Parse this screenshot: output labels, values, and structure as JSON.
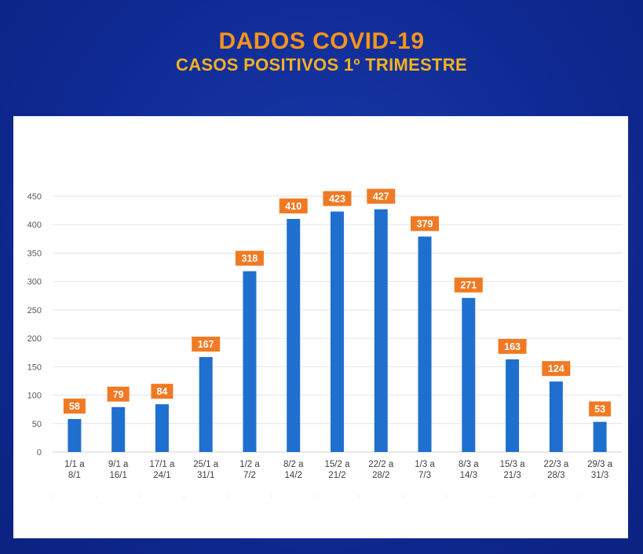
{
  "header": {
    "title": "DADOS COVID-19",
    "subtitle": "CASOS POSITIVOS 1º TRIMESTRE"
  },
  "colors": {
    "background": "#0f2a94",
    "bar": "#1f6fcf",
    "label_box": "#f07a24",
    "title": "#f7931e"
  },
  "chart_data": {
    "type": "bar",
    "categories": [
      [
        "1/1 a",
        "8/1"
      ],
      [
        "9/1 a",
        "16/1"
      ],
      [
        "17/1 a",
        "24/1"
      ],
      [
        "25/1 a",
        "31/1"
      ],
      [
        "1/2 a",
        "7/2"
      ],
      [
        "8/2 a",
        "14/2"
      ],
      [
        "15/2 a",
        "21/2"
      ],
      [
        "22/2 a",
        "28/2"
      ],
      [
        "1/3 a",
        "7/3"
      ],
      [
        "8/3 a",
        "14/3"
      ],
      [
        "15/3 a",
        "21/3"
      ],
      [
        "22/3 a",
        "28/3"
      ],
      [
        "29/3 a",
        "31/3"
      ]
    ],
    "values": [
      58,
      79,
      84,
      167,
      318,
      410,
      423,
      427,
      379,
      271,
      163,
      124,
      53
    ],
    "ylim": [
      0,
      450
    ],
    "yticks": [
      0,
      50,
      100,
      150,
      200,
      250,
      300,
      350,
      400,
      450
    ],
    "grid": true,
    "data_labels": true
  }
}
